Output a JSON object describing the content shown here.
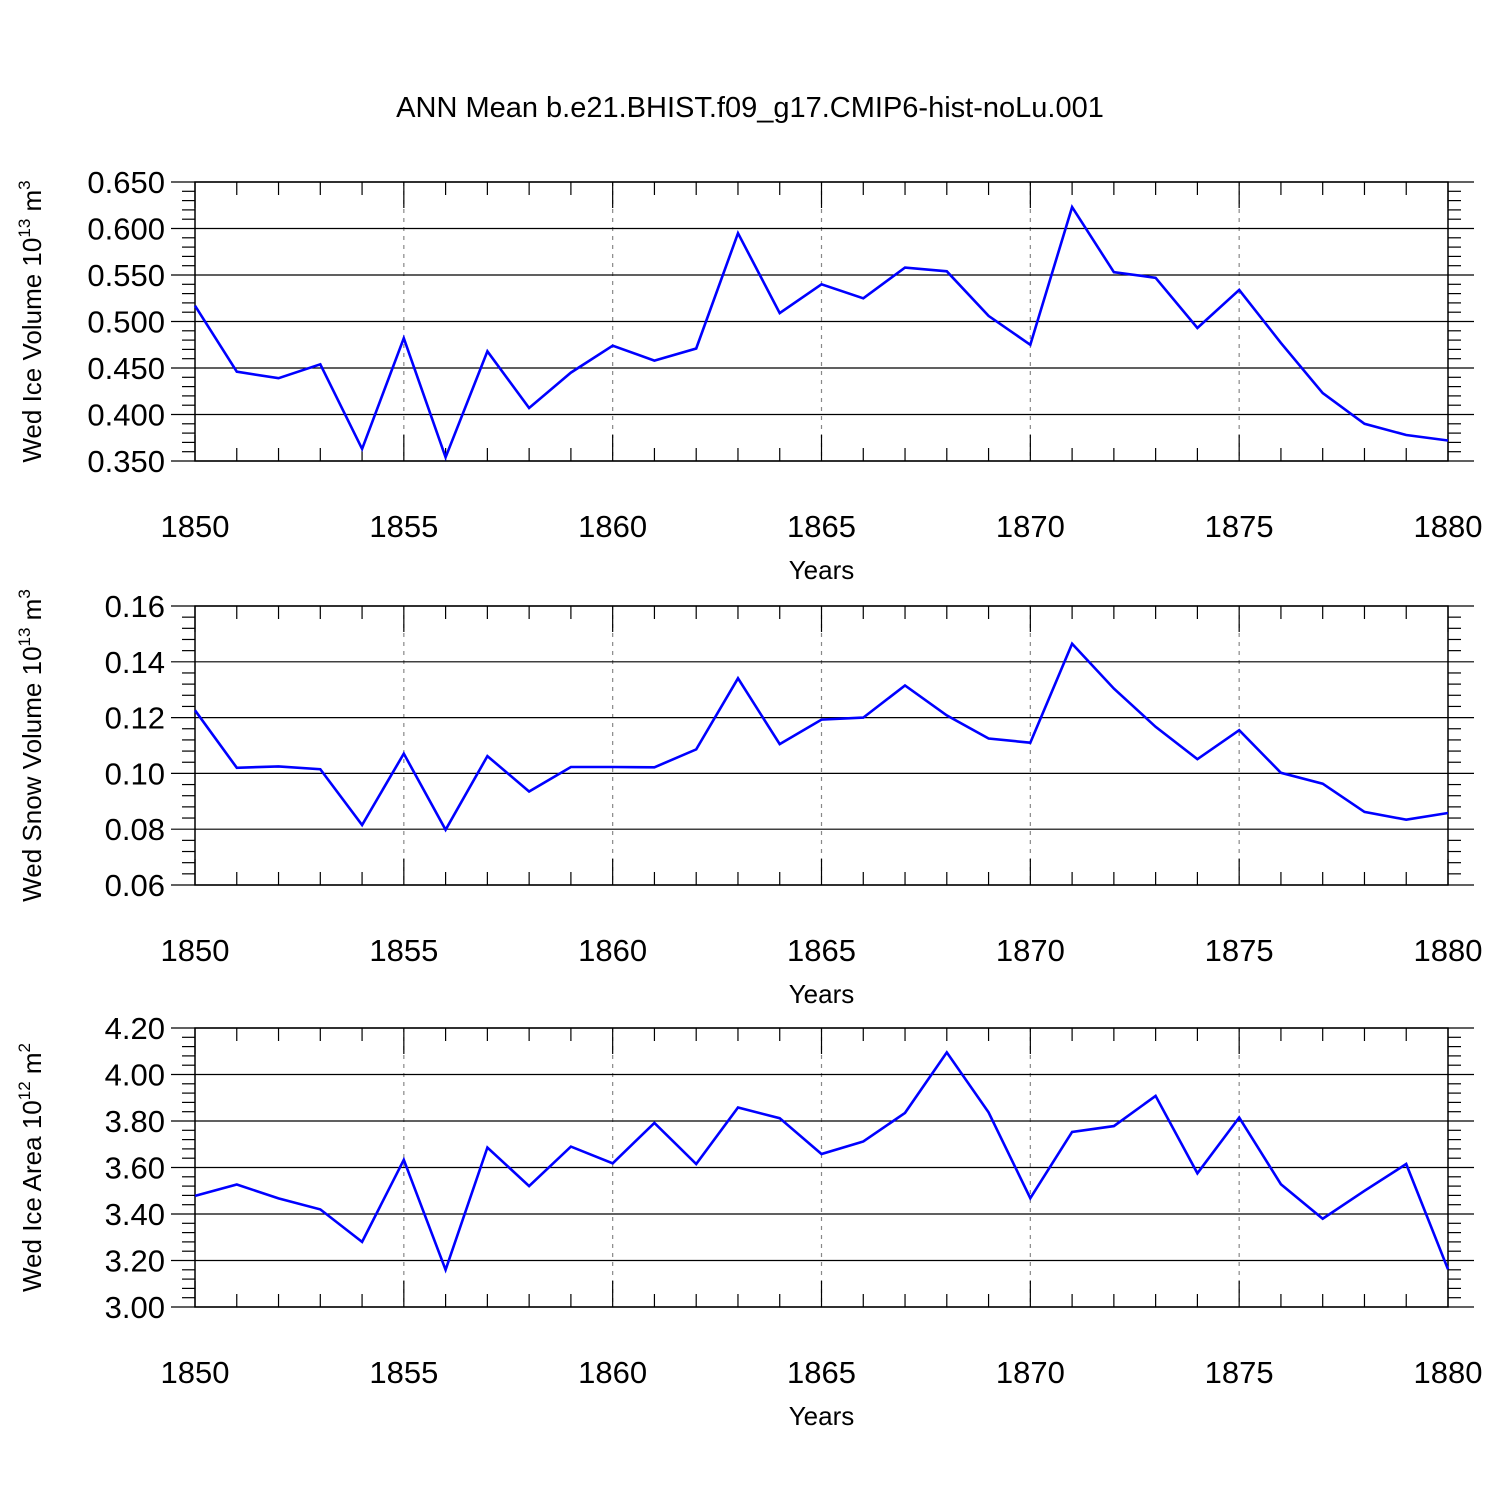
{
  "title": "ANN Mean b.e21.BHIST.f09_g17.CMIP6-hist-noLu.001",
  "colors": {
    "line": "#0000ff",
    "axis": "#000000",
    "grid": "#888888"
  },
  "chart_data": [
    {
      "type": "line",
      "title": "",
      "xlabel": "Years",
      "ylabel_main": "Wed Ice Volume 10",
      "ylabel_exp": "13",
      "ylabel_unit": " m",
      "ylabel_unit_exp": "3",
      "xlim": [
        1850,
        1880
      ],
      "ylim": [
        0.35,
        0.65
      ],
      "xticks": [
        "1850",
        "1855",
        "1860",
        "1865",
        "1870",
        "1875",
        "1880"
      ],
      "yticks": [
        "0.350",
        "0.400",
        "0.450",
        "0.500",
        "0.550",
        "0.600",
        "0.650"
      ],
      "grid": "vertical dashed at major x ticks",
      "x": [
        1850,
        1851,
        1852,
        1853,
        1854,
        1855,
        1856,
        1857,
        1858,
        1859,
        1860,
        1861,
        1862,
        1863,
        1864,
        1865,
        1866,
        1867,
        1868,
        1869,
        1870,
        1871,
        1872,
        1873,
        1874,
        1875,
        1876,
        1877,
        1878,
        1879,
        1880
      ],
      "values": [
        0.517,
        0.446,
        0.439,
        0.454,
        0.363,
        0.482,
        0.354,
        0.468,
        0.407,
        0.445,
        0.474,
        0.458,
        0.471,
        0.595,
        0.509,
        0.54,
        0.525,
        0.558,
        0.554,
        0.506,
        0.475,
        0.623,
        0.553,
        0.547,
        0.493,
        0.534,
        0.477,
        0.423,
        0.39,
        0.378,
        0.372
      ]
    },
    {
      "type": "line",
      "title": "",
      "xlabel": "Years",
      "ylabel_main": "Wed Snow Volume 10",
      "ylabel_exp": "13",
      "ylabel_unit": " m",
      "ylabel_unit_exp": "3",
      "xlim": [
        1850,
        1880
      ],
      "ylim": [
        0.06,
        0.16
      ],
      "xticks": [
        "1850",
        "1855",
        "1860",
        "1865",
        "1870",
        "1875",
        "1880"
      ],
      "yticks": [
        "0.06",
        "0.08",
        "0.10",
        "0.12",
        "0.14",
        "0.16"
      ],
      "grid": "vertical dashed at major x ticks",
      "x": [
        1850,
        1851,
        1852,
        1853,
        1854,
        1855,
        1856,
        1857,
        1858,
        1859,
        1860,
        1861,
        1862,
        1863,
        1864,
        1865,
        1866,
        1867,
        1868,
        1869,
        1870,
        1871,
        1872,
        1873,
        1874,
        1875,
        1876,
        1877,
        1878,
        1879,
        1880
      ],
      "values": [
        0.1226,
        0.102,
        0.1025,
        0.1015,
        0.0815,
        0.1071,
        0.0798,
        0.1062,
        0.0935,
        0.1023,
        0.1023,
        0.1022,
        0.1086,
        0.1341,
        0.1105,
        0.1193,
        0.12,
        0.1315,
        0.1208,
        0.1125,
        0.111,
        0.1465,
        0.1304,
        0.1167,
        0.1051,
        0.1155,
        0.1002,
        0.0963,
        0.0862,
        0.0834,
        0.0858
      ]
    },
    {
      "type": "line",
      "title": "",
      "xlabel": "Years",
      "ylabel_main": "Wed Ice Area 10",
      "ylabel_exp": "12",
      "ylabel_unit": " m",
      "ylabel_unit_exp": "2",
      "xlim": [
        1850,
        1880
      ],
      "ylim": [
        3.0,
        4.2
      ],
      "xticks": [
        "1850",
        "1855",
        "1860",
        "1865",
        "1870",
        "1875",
        "1880"
      ],
      "yticks": [
        "3.00",
        "3.20",
        "3.40",
        "3.60",
        "3.80",
        "4.00",
        "4.20"
      ],
      "grid": "vertical dashed at major x ticks",
      "x": [
        1850,
        1851,
        1852,
        1853,
        1854,
        1855,
        1856,
        1857,
        1858,
        1859,
        1860,
        1861,
        1862,
        1863,
        1864,
        1865,
        1866,
        1867,
        1868,
        1869,
        1870,
        1871,
        1872,
        1873,
        1874,
        1875,
        1876,
        1877,
        1878,
        1879,
        1880
      ],
      "values": [
        3.478,
        3.527,
        3.467,
        3.42,
        3.28,
        3.633,
        3.16,
        3.686,
        3.52,
        3.69,
        3.618,
        3.792,
        3.615,
        3.858,
        3.812,
        3.658,
        3.712,
        3.835,
        4.095,
        3.837,
        3.468,
        3.753,
        3.778,
        3.908,
        3.575,
        3.815,
        3.528,
        3.38,
        3.5,
        3.615,
        3.162
      ]
    }
  ]
}
